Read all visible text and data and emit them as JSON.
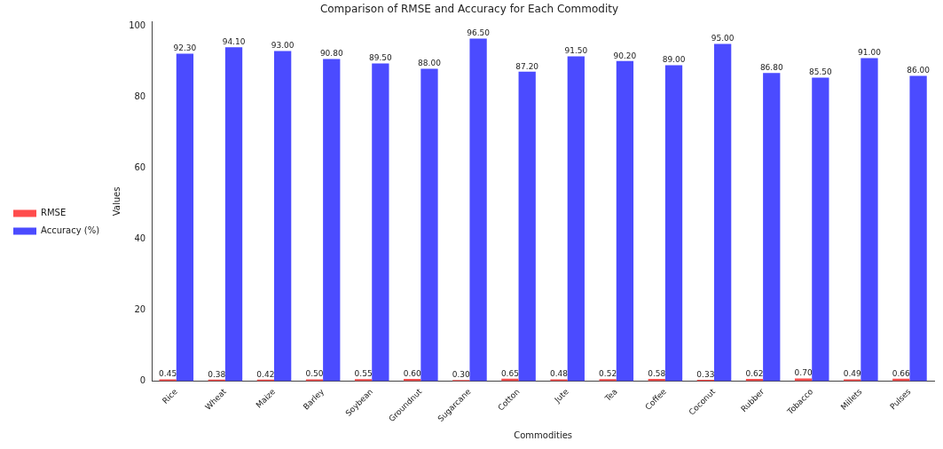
{
  "chart_data": {
    "type": "bar",
    "title": "Comparison of RMSE and Accuracy for Each Commodity",
    "xlabel": "Commodities",
    "ylabel": "Values",
    "categories": [
      "Rice",
      "Wheat",
      "Maize",
      "Barley",
      "Soybean",
      "Groundnut",
      "Sugarcane",
      "Cotton",
      "Jute",
      "Tea",
      "Coffee",
      "Coconut",
      "Rubber",
      "Tobacco",
      "Millets",
      "Pulses"
    ],
    "series": [
      {
        "name": "RMSE",
        "color": "#ff4c4c",
        "values": [
          0.45,
          0.38,
          0.42,
          0.5,
          0.55,
          0.6,
          0.3,
          0.65,
          0.48,
          0.52,
          0.58,
          0.33,
          0.62,
          0.7,
          0.49,
          0.66
        ],
        "value_labels": [
          "0.45",
          "0.38",
          "0.42",
          "0.50",
          "0.55",
          "0.60",
          "0.30",
          "0.65",
          "0.48",
          "0.52",
          "0.58",
          "0.33",
          "0.62",
          "0.70",
          "0.49",
          "0.66"
        ]
      },
      {
        "name": "Accuracy (%)",
        "color": "#4b4bff",
        "values": [
          92.3,
          94.1,
          93.0,
          90.8,
          89.5,
          88.0,
          96.5,
          87.2,
          91.5,
          90.2,
          89.0,
          95.0,
          86.8,
          85.5,
          91.0,
          86.0
        ],
        "value_labels": [
          "92.30",
          "94.10",
          "93.00",
          "90.80",
          "89.50",
          "88.00",
          "96.50",
          "87.20",
          "91.50",
          "90.20",
          "89.00",
          "95.00",
          "86.80",
          "85.50",
          "91.00",
          "86.00"
        ]
      }
    ],
    "ylim": [
      0,
      101.3
    ],
    "yticks": [
      0,
      20,
      40,
      60,
      80,
      100
    ],
    "legend": "left"
  }
}
